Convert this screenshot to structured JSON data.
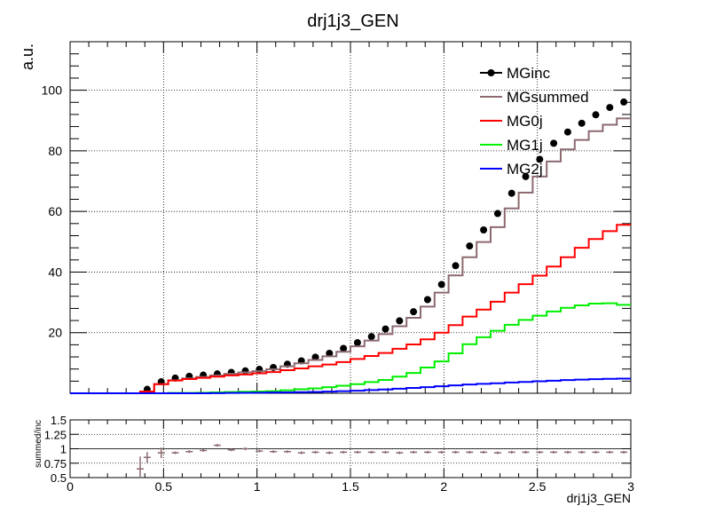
{
  "chart_data": [
    {
      "type": "line",
      "title": "drj1j3_GEN",
      "ylabel": "a.u.",
      "xlim": [
        0,
        3
      ],
      "ylim": [
        0,
        116
      ],
      "ytick_labels": [
        "20",
        "40",
        "60",
        "80",
        "100"
      ],
      "grid": true,
      "legend_position": "top-right",
      "x": [
        0.0375,
        0.1125,
        0.1875,
        0.2625,
        0.3375,
        0.4125,
        0.4875,
        0.5625,
        0.6375,
        0.7125,
        0.7875,
        0.8625,
        0.9375,
        1.0125,
        1.0875,
        1.1625,
        1.2375,
        1.3125,
        1.3875,
        1.4625,
        1.5375,
        1.6125,
        1.6875,
        1.7625,
        1.8375,
        1.9125,
        1.9875,
        2.0625,
        2.1375,
        2.2125,
        2.2875,
        2.3625,
        2.4375,
        2.5125,
        2.5875,
        2.6625,
        2.7375,
        2.8125,
        2.8875,
        2.9625
      ],
      "series": [
        {
          "name": "MGinc",
          "style": "markers",
          "color": "#000000",
          "values": [
            0,
            0,
            0,
            0,
            0,
            1.3,
            3.8,
            5.0,
            5.6,
            6.0,
            6.4,
            6.9,
            7.4,
            7.9,
            8.5,
            9.6,
            10.7,
            11.9,
            13.2,
            14.8,
            16.7,
            18.7,
            21.2,
            23.9,
            26.9,
            30.9,
            35.9,
            42.1,
            48.6,
            53.9,
            59.3,
            66.0,
            71.5,
            77.2,
            82.5,
            86.2,
            89.1,
            91.9,
            94.3,
            96.1
          ]
        },
        {
          "name": "MGsummed",
          "style": "step",
          "color": "#8c6a70",
          "values": [
            0,
            0,
            0,
            0,
            0,
            0.6,
            3.0,
            4.3,
            4.9,
            5.4,
            5.9,
            6.4,
            6.9,
            7.3,
            7.9,
            8.9,
            9.9,
            11.0,
            12.2,
            13.7,
            15.5,
            17.4,
            19.5,
            22.1,
            24.9,
            28.6,
            33.2,
            38.9,
            44.9,
            49.9,
            54.8,
            61.0,
            66.2,
            71.5,
            76.5,
            80.5,
            83.6,
            86.5,
            88.6,
            90.7
          ]
        },
        {
          "name": "MG0j",
          "style": "step",
          "color": "#ff0000",
          "values": [
            0,
            0,
            0,
            0,
            0,
            0.6,
            3.0,
            4.2,
            4.7,
            5.1,
            5.5,
            5.9,
            6.2,
            6.6,
            7.0,
            7.6,
            8.2,
            8.9,
            9.5,
            10.3,
            11.3,
            12.3,
            13.3,
            14.7,
            16.1,
            17.8,
            20.0,
            22.5,
            25.3,
            27.6,
            30.2,
            33.2,
            36.0,
            38.8,
            41.8,
            44.9,
            48.0,
            50.9,
            53.5,
            55.6
          ]
        },
        {
          "name": "MG1j",
          "style": "step",
          "color": "#00ee00",
          "values": [
            0,
            0,
            0,
            0,
            0,
            0,
            0,
            0.1,
            0.1,
            0.2,
            0.3,
            0.4,
            0.5,
            0.6,
            0.7,
            1.0,
            1.3,
            1.6,
            2.0,
            2.5,
            3.0,
            3.7,
            4.4,
            5.5,
            6.7,
            8.5,
            10.5,
            13.2,
            16.2,
            18.5,
            20.6,
            22.6,
            24.2,
            25.6,
            27.0,
            28.2,
            29.0,
            29.6,
            29.7,
            29.2
          ]
        },
        {
          "name": "MG2j",
          "style": "step",
          "color": "#0000ff",
          "values": [
            0,
            0,
            0,
            0,
            0,
            0,
            0,
            0,
            0,
            0,
            0.05,
            0.1,
            0.15,
            0.2,
            0.25,
            0.3,
            0.35,
            0.45,
            0.55,
            0.7,
            0.85,
            1.05,
            1.25,
            1.5,
            1.75,
            2.0,
            2.3,
            2.6,
            2.9,
            3.1,
            3.3,
            3.55,
            3.75,
            3.95,
            4.15,
            4.35,
            4.5,
            4.65,
            4.75,
            4.85
          ]
        }
      ]
    },
    {
      "type": "scatter",
      "xlabel": "drj1j3_GEN",
      "ylabel": "summed/inc",
      "xlim": [
        0,
        3
      ],
      "ylim": [
        0.5,
        1.5
      ],
      "xtick_labels": [
        "0",
        "0.5",
        "1",
        "1.5",
        "2",
        "2.5",
        "3"
      ],
      "ytick_labels": [
        "0.5",
        "0.75",
        "1",
        "1.25",
        "1.5"
      ],
      "grid": true,
      "series": [
        {
          "name": "summed/inc",
          "color": "#8c6a70",
          "x": [
            0.375,
            0.4125,
            0.4875,
            0.5625,
            0.6375,
            0.7125,
            0.7875,
            0.8625,
            0.9375,
            1.0125,
            1.0875,
            1.1625,
            1.2375,
            1.3125,
            1.3875,
            1.4625,
            1.5375,
            1.6125,
            1.6875,
            1.7625,
            1.8375,
            1.9125,
            1.9875,
            2.0625,
            2.1375,
            2.2125,
            2.2875,
            2.3625,
            2.4375,
            2.5125,
            2.5875,
            2.6625,
            2.7375,
            2.8125,
            2.8875,
            2.9625
          ],
          "values": [
            0.65,
            0.85,
            0.93,
            0.93,
            0.95,
            0.97,
            1.06,
            0.98,
            1.0,
            0.96,
            0.95,
            0.95,
            0.93,
            0.94,
            0.93,
            0.94,
            0.94,
            0.94,
            0.94,
            0.93,
            0.94,
            0.94,
            0.94,
            0.94,
            0.94,
            0.94,
            0.93,
            0.94,
            0.94,
            0.94,
            0.94,
            0.94,
            0.94,
            0.94,
            0.94,
            0.94
          ]
        }
      ]
    }
  ]
}
